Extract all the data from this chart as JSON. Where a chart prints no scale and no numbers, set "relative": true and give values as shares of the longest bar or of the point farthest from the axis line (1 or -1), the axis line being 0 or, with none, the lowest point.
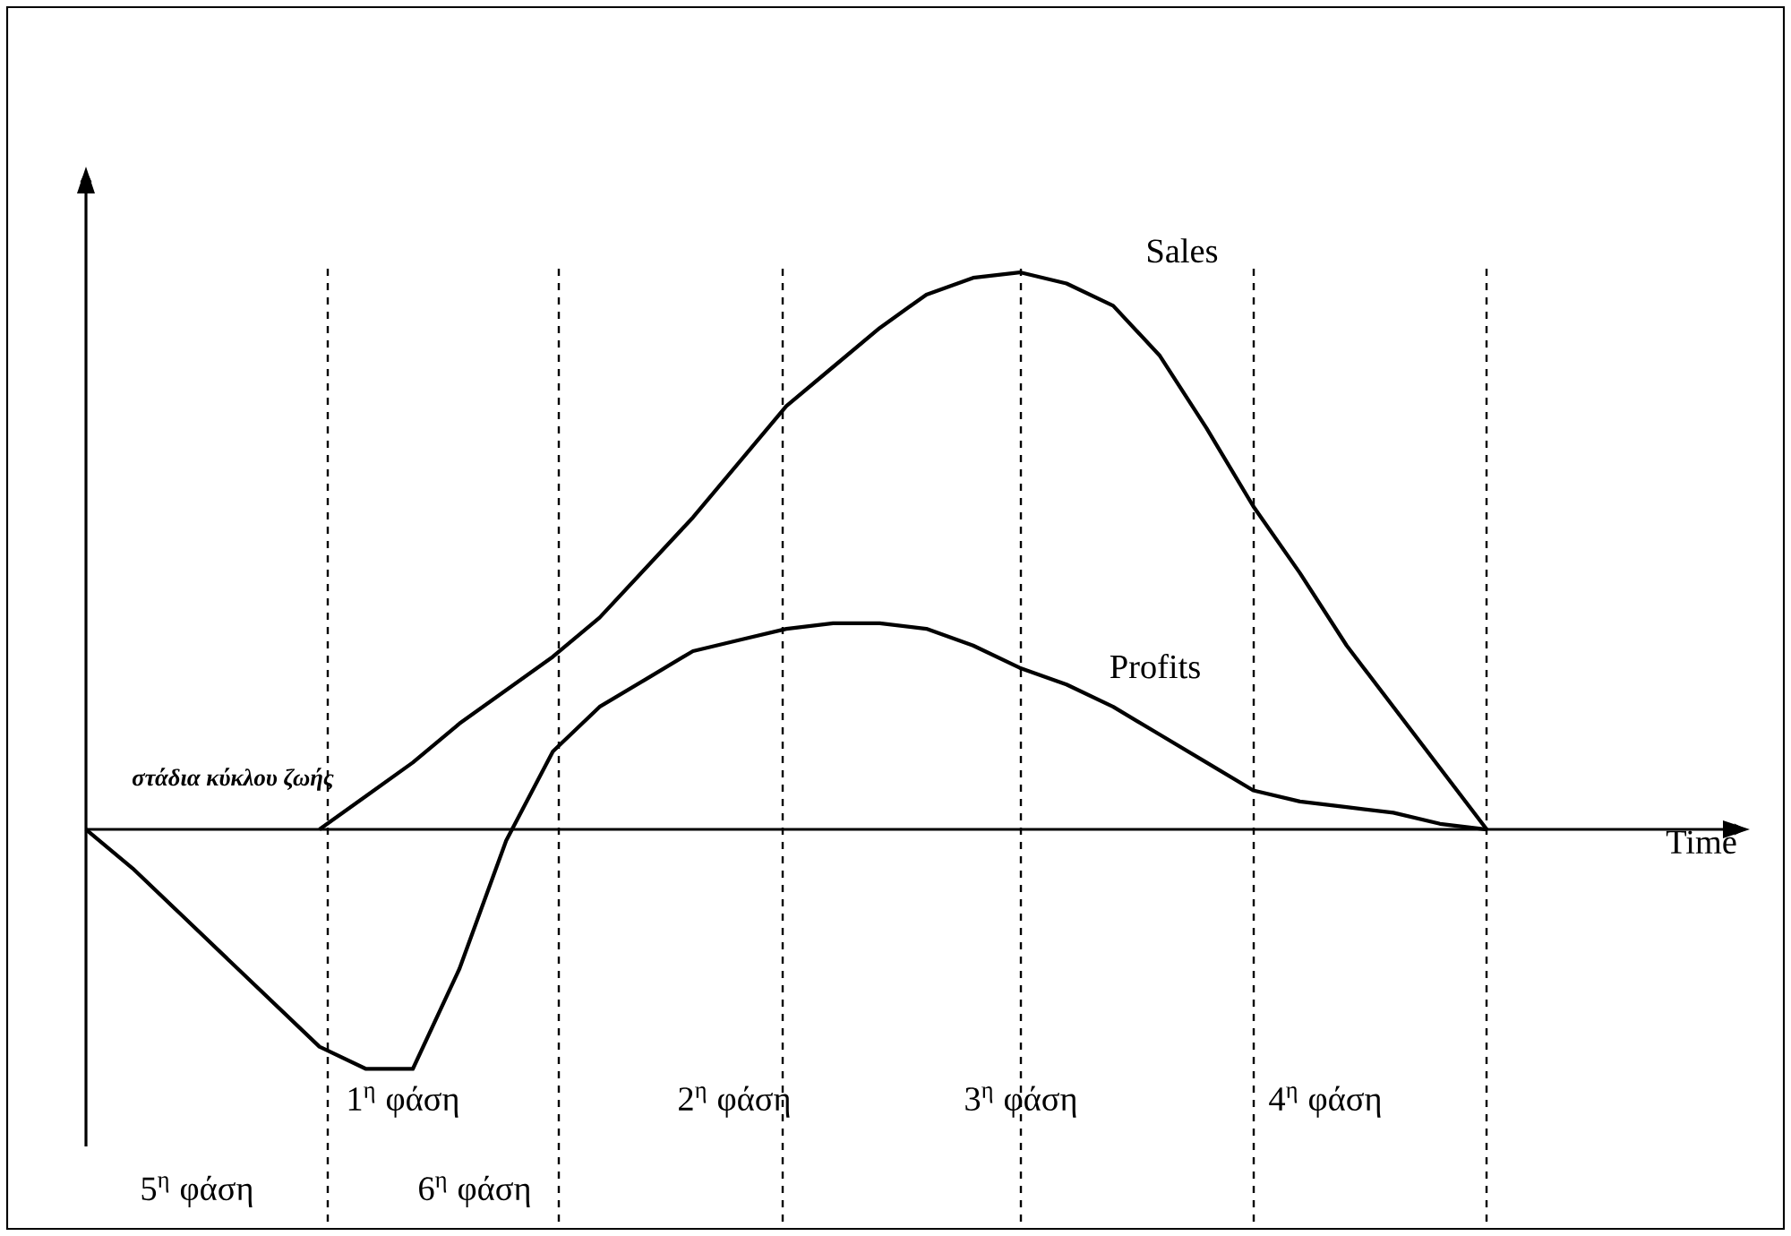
{
  "chart_data": {
    "type": "line",
    "relative": true,
    "xlabel": "Time",
    "grid": "x",
    "marker": "none",
    "line_style": "solid",
    "categories": [
      null,
      null,
      null,
      null,
      null,
      null,
      null,
      null,
      null,
      null,
      null,
      null,
      null,
      null,
      null,
      null,
      null,
      null,
      null,
      null,
      null,
      null,
      null,
      null,
      null,
      null,
      null,
      null,
      null,
      null,
      null
    ],
    "series": [
      {
        "name": "Sales",
        "color": "#000000",
        "values": [
          null,
          null,
          null,
          null,
          null,
          0,
          0.06,
          0.12,
          0.19,
          0.25,
          0.31,
          0.38,
          0.47,
          0.56,
          0.66,
          0.76,
          0.83,
          0.9,
          0.96,
          0.99,
          1,
          0.98,
          0.94,
          0.85,
          0.72,
          0.58,
          0.46,
          0.33,
          0.22,
          0.11,
          0
        ]
      },
      {
        "name": "Profits",
        "color": "#000000",
        "values": [
          0,
          -0.07,
          -0.15,
          -0.23,
          -0.31,
          -0.39,
          -0.43,
          -0.43,
          -0.25,
          -0.02,
          0.14,
          0.22,
          0.27,
          0.32,
          0.34,
          0.36,
          0.37,
          0.37,
          0.36,
          0.33,
          0.29,
          0.26,
          0.22,
          0.17,
          0.12,
          0.07,
          0.05,
          0.04,
          0.03,
          0.01,
          0
        ]
      }
    ],
    "annotations": [
      "στάδια κύκλου ζωής",
      "1$^{η}$ φάση",
      "2$^{η}$ φάση",
      "3$^{η}$ φάση",
      "4$^{η}$ φάση",
      "5$^{η}$ φάση",
      "6$^{η}$ φάση"
    ]
  }
}
